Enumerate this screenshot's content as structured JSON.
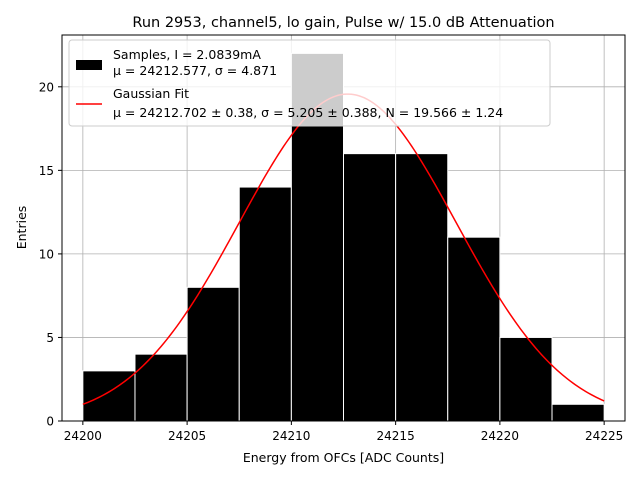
{
  "chart_data": {
    "type": "histogram",
    "title": "Run 2953, channel5, lo gain, Pulse w/ 15.0 dB Attenuation",
    "xlabel": "Energy from OFCs [ADC Counts]",
    "ylabel": "Entries",
    "xlim": [
      24199.0,
      24226.0
    ],
    "ylim": [
      0,
      23.1
    ],
    "xticks": [
      24200,
      24205,
      24210,
      24215,
      24220,
      24225
    ],
    "xtick_labels": [
      "24200",
      "24205",
      "24210",
      "24215",
      "24220",
      "24225"
    ],
    "yticks": [
      0,
      5,
      10,
      15,
      20
    ],
    "ytick_labels": [
      "0",
      "5",
      "10",
      "15",
      "20"
    ],
    "grid": true,
    "bins": [
      {
        "x0": 24200.0,
        "x1": 24202.5,
        "count": 3
      },
      {
        "x0": 24202.5,
        "x1": 24205.0,
        "count": 4
      },
      {
        "x0": 24205.0,
        "x1": 24207.5,
        "count": 8
      },
      {
        "x0": 24207.5,
        "x1": 24210.0,
        "count": 14
      },
      {
        "x0": 24210.0,
        "x1": 24212.5,
        "count": 22
      },
      {
        "x0": 24212.5,
        "x1": 24215.0,
        "count": 16
      },
      {
        "x0": 24215.0,
        "x1": 24217.5,
        "count": 16
      },
      {
        "x0": 24217.5,
        "x1": 24220.0,
        "count": 11
      },
      {
        "x0": 24220.0,
        "x1": 24222.5,
        "count": 5
      },
      {
        "x0": 24222.5,
        "x1": 24225.0,
        "count": 1
      }
    ],
    "bar_color": "#000000",
    "bar_edge_color": "#ffffff",
    "fit": {
      "type": "gaussian",
      "mu": 24212.702,
      "sigma": 5.205,
      "N": 19.566,
      "x_range": [
        24200,
        24225
      ],
      "color": "#ff0000"
    },
    "legend": {
      "placement": "upper-left",
      "entries": [
        {
          "kind": "patch",
          "color": "#000000",
          "line1": "Samples, I = 2.0839mA",
          "line2": "μ = 24212.577, σ = 4.871"
        },
        {
          "kind": "line",
          "color": "#ff0000",
          "line1": "Gaussian Fit",
          "line2": "μ = 24212.702 ± 0.38, σ = 5.205 ± 0.388, N = 19.566 ± 1.24"
        }
      ]
    }
  }
}
